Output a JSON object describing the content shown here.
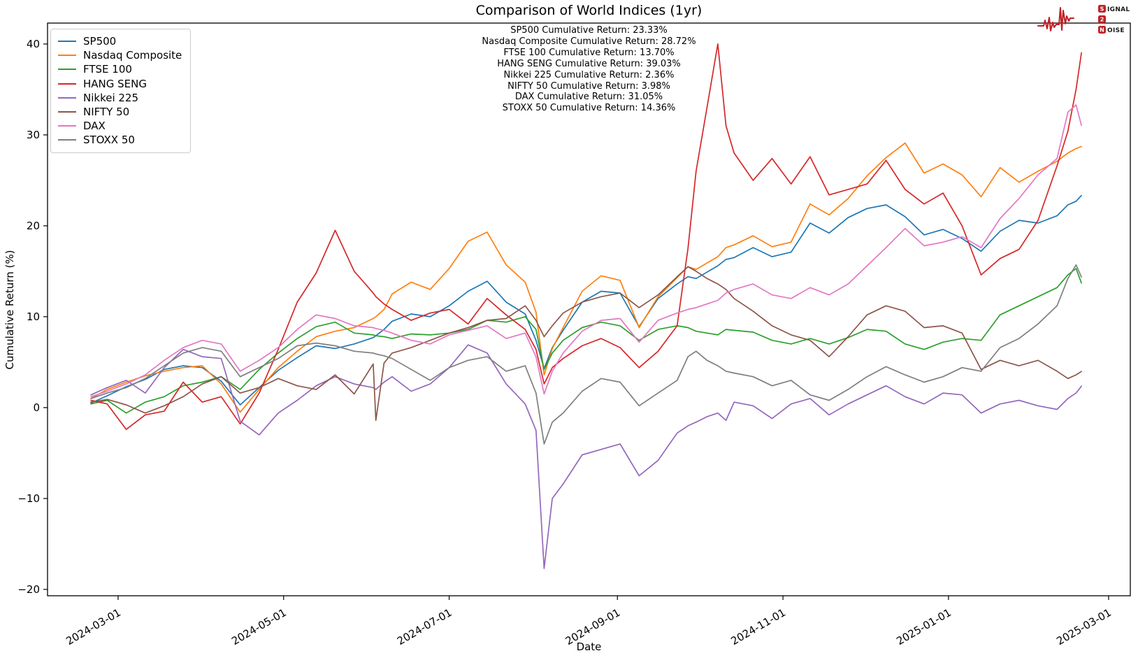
{
  "title": "Comparison of World Indices (1yr)",
  "annotations": [
    "SP500 Cumulative Return: 23.33%",
    "Nasdaq Composite Cumulative Return: 28.72%",
    "FTSE 100 Cumulative Return: 13.70%",
    "HANG SENG Cumulative Return: 39.03%",
    "Nikkei 225 Cumulative Return: 2.36%",
    "NIFTY 50 Cumulative Return: 3.98%",
    "DAX Cumulative Return: 31.05%",
    "STOXX 50 Cumulative Return: 14.36%"
  ],
  "logo": {
    "word1": "SIGNAL",
    "word2": "2",
    "word3": "NOISE",
    "accent_color": "#bf2026"
  },
  "chart_data": {
    "type": "line",
    "title": "Comparison of World Indices (1yr)",
    "xlabel": "Date",
    "ylabel": "Cumulative Return (%)",
    "grid": false,
    "legend_position": "upper left",
    "xlim": [
      "2024-02-04",
      "2025-03-09"
    ],
    "ylim": [
      -20.7,
      42.3
    ],
    "x_ticks": [
      "2024-03-01",
      "2024-05-01",
      "2024-07-01",
      "2024-09-01",
      "2024-11-01",
      "2025-01-01",
      "2025-03-01"
    ],
    "y_ticks": [
      {
        "value": -20,
        "label": "−20"
      },
      {
        "value": -10,
        "label": "−10"
      },
      {
        "value": 0,
        "label": "0"
      },
      {
        "value": 10,
        "label": "10"
      },
      {
        "value": 20,
        "label": "20"
      },
      {
        "value": 30,
        "label": "30"
      },
      {
        "value": 40,
        "label": "40"
      }
    ],
    "x": [
      "2024-02-20",
      "2024-02-26",
      "2024-03-04",
      "2024-03-11",
      "2024-03-18",
      "2024-03-25",
      "2024-04-01",
      "2024-04-08",
      "2024-04-15",
      "2024-04-22",
      "2024-04-29",
      "2024-05-06",
      "2024-05-13",
      "2024-05-20",
      "2024-05-27",
      "2024-06-03",
      "2024-06-04",
      "2024-06-07",
      "2024-06-10",
      "2024-06-17",
      "2024-06-24",
      "2024-07-01",
      "2024-07-08",
      "2024-07-15",
      "2024-07-22",
      "2024-07-29",
      "2024-08-02",
      "2024-08-05",
      "2024-08-08",
      "2024-08-12",
      "2024-08-19",
      "2024-08-26",
      "2024-09-02",
      "2024-09-09",
      "2024-09-16",
      "2024-09-23",
      "2024-09-27",
      "2024-09-30",
      "2024-10-04",
      "2024-10-08",
      "2024-10-11",
      "2024-10-14",
      "2024-10-21",
      "2024-10-28",
      "2024-11-04",
      "2024-11-11",
      "2024-11-18",
      "2024-11-25",
      "2024-12-02",
      "2024-12-09",
      "2024-12-16",
      "2024-12-23",
      "2024-12-30",
      "2025-01-06",
      "2025-01-13",
      "2025-01-20",
      "2025-01-27",
      "2025-02-03",
      "2025-02-10",
      "2025-02-14",
      "2025-02-17",
      "2025-02-19"
    ],
    "series": [
      {
        "name": "SP500",
        "color": "#1f77b4",
        "final_return_pct": 23.33,
        "values": [
          0.5,
          1.3,
          2.3,
          3.1,
          4.2,
          4.6,
          4.4,
          2.9,
          0.3,
          2.2,
          4.1,
          5.5,
          6.8,
          6.5,
          7.0,
          7.7,
          7.9,
          8.6,
          9.5,
          10.3,
          10.0,
          11.2,
          12.8,
          13.9,
          11.6,
          10.3,
          7.4,
          4.3,
          6.6,
          8.5,
          11.6,
          12.8,
          12.6,
          8.9,
          12.0,
          13.6,
          14.4,
          14.2,
          14.9,
          15.6,
          16.3,
          16.5,
          17.6,
          16.6,
          17.1,
          20.3,
          19.2,
          20.9,
          21.9,
          22.3,
          21.0,
          19.0,
          19.6,
          18.6,
          17.2,
          19.4,
          20.6,
          20.3,
          21.1,
          22.3,
          22.7,
          23.33
        ]
      },
      {
        "name": "Nasdaq Composite",
        "color": "#ff7f0e",
        "final_return_pct": 28.72,
        "values": [
          1.0,
          2.0,
          2.8,
          3.5,
          4.0,
          4.4,
          4.6,
          2.6,
          -0.5,
          2.0,
          4.4,
          6.2,
          7.8,
          8.4,
          8.8,
          9.8,
          10.0,
          10.8,
          12.5,
          13.8,
          13.0,
          15.3,
          18.3,
          19.3,
          15.7,
          13.8,
          10.5,
          3.6,
          6.5,
          8.8,
          12.8,
          14.5,
          14.0,
          8.8,
          12.2,
          14.3,
          15.5,
          15.2,
          15.9,
          16.6,
          17.6,
          17.9,
          18.9,
          17.7,
          18.2,
          22.4,
          21.2,
          23.0,
          25.5,
          27.5,
          29.1,
          25.8,
          26.8,
          25.6,
          23.2,
          26.4,
          24.8,
          26.0,
          27.1,
          28.0,
          28.5,
          28.72
        ]
      },
      {
        "name": "FTSE 100",
        "color": "#2ca02c",
        "final_return_pct": 13.7,
        "values": [
          0.4,
          0.8,
          -0.6,
          0.6,
          1.2,
          2.4,
          2.8,
          3.4,
          2.0,
          4.2,
          6.0,
          7.6,
          8.9,
          9.4,
          8.2,
          8.0,
          7.9,
          7.8,
          7.6,
          8.1,
          8.0,
          8.2,
          8.6,
          9.6,
          9.4,
          10.0,
          8.6,
          4.2,
          6.0,
          7.4,
          8.8,
          9.4,
          9.0,
          7.4,
          8.6,
          9.0,
          8.8,
          8.4,
          8.2,
          8.0,
          8.6,
          8.5,
          8.3,
          7.4,
          7.0,
          7.6,
          7.0,
          7.7,
          8.6,
          8.4,
          7.0,
          6.4,
          7.2,
          7.6,
          7.4,
          10.2,
          11.2,
          12.2,
          13.2,
          14.6,
          15.3,
          13.7
        ]
      },
      {
        "name": "HANG SENG",
        "color": "#d62728",
        "final_return_pct": 39.03,
        "values": [
          0.8,
          0.4,
          -2.4,
          -0.8,
          -0.4,
          2.8,
          0.6,
          1.2,
          -1.8,
          1.6,
          6.4,
          11.6,
          14.8,
          19.5,
          15.0,
          12.6,
          12.2,
          11.4,
          10.8,
          9.6,
          10.4,
          10.8,
          9.2,
          12.0,
          10.2,
          8.6,
          6.4,
          2.6,
          4.4,
          5.4,
          6.8,
          7.6,
          6.6,
          4.4,
          6.2,
          9.0,
          17.5,
          26.0,
          33.0,
          40.0,
          31.0,
          28.0,
          25.0,
          27.4,
          24.6,
          27.6,
          23.4,
          24.0,
          24.6,
          27.2,
          24.0,
          22.4,
          23.6,
          20.0,
          14.6,
          16.4,
          17.4,
          20.6,
          26.6,
          30.4,
          35.0,
          39.03
        ]
      },
      {
        "name": "Nikkei 225",
        "color": "#9467bd",
        "final_return_pct": 2.36,
        "values": [
          1.4,
          2.2,
          3.0,
          1.6,
          4.4,
          6.4,
          5.6,
          5.4,
          -1.5,
          -3.0,
          -0.6,
          0.8,
          2.4,
          3.4,
          2.6,
          2.2,
          2.0,
          2.8,
          3.4,
          1.8,
          2.6,
          4.4,
          6.9,
          6.0,
          2.6,
          0.4,
          -2.5,
          -17.7,
          -10.0,
          -8.4,
          -5.2,
          -4.6,
          -4.0,
          -7.5,
          -5.8,
          -2.8,
          -2.0,
          -1.6,
          -1.0,
          -0.6,
          -1.4,
          0.6,
          0.2,
          -1.2,
          0.4,
          1.0,
          -0.8,
          0.4,
          1.4,
          2.4,
          1.2,
          0.4,
          1.6,
          1.4,
          -0.6,
          0.4,
          0.8,
          0.2,
          -0.2,
          1.0,
          1.6,
          2.36
        ]
      },
      {
        "name": "NIFTY 50",
        "color": "#8c564b",
        "final_return_pct": 3.98,
        "values": [
          0.6,
          0.9,
          0.3,
          -0.6,
          0.2,
          1.2,
          2.6,
          3.4,
          1.6,
          2.2,
          3.2,
          2.4,
          2.0,
          3.6,
          1.5,
          4.8,
          -1.4,
          4.9,
          6.0,
          6.6,
          7.4,
          8.2,
          8.8,
          9.6,
          9.8,
          11.2,
          9.6,
          7.8,
          9.0,
          10.4,
          11.6,
          12.2,
          12.6,
          11.0,
          12.4,
          14.4,
          15.5,
          15.0,
          14.2,
          13.6,
          13.0,
          12.0,
          10.6,
          9.0,
          8.0,
          7.4,
          5.6,
          7.8,
          10.2,
          11.2,
          10.6,
          8.8,
          9.0,
          8.2,
          4.2,
          5.2,
          4.6,
          5.2,
          4.0,
          3.2,
          3.6,
          3.98
        ]
      },
      {
        "name": "DAX",
        "color": "#e377c2",
        "final_return_pct": 31.05,
        "values": [
          1.2,
          1.8,
          2.6,
          3.6,
          5.2,
          6.6,
          7.4,
          7.0,
          4.0,
          5.2,
          6.6,
          8.6,
          10.2,
          9.8,
          9.0,
          8.8,
          8.7,
          8.5,
          8.2,
          7.4,
          7.0,
          8.0,
          8.5,
          9.0,
          7.6,
          8.2,
          5.6,
          1.5,
          4.0,
          6.0,
          8.4,
          9.6,
          9.8,
          7.2,
          9.6,
          10.4,
          10.8,
          11.0,
          11.4,
          11.8,
          12.6,
          13.0,
          13.6,
          12.4,
          12.0,
          13.2,
          12.4,
          13.6,
          15.6,
          17.6,
          19.7,
          17.8,
          18.2,
          18.8,
          17.6,
          20.8,
          23.0,
          25.6,
          27.4,
          32.5,
          33.3,
          31.05
        ]
      },
      {
        "name": "STOXX 50",
        "color": "#7f7f7f",
        "final_return_pct": 14.36,
        "values": [
          1.0,
          1.6,
          2.2,
          3.2,
          4.6,
          6.0,
          6.6,
          6.2,
          3.4,
          4.4,
          5.4,
          6.8,
          7.1,
          6.8,
          6.2,
          6.0,
          5.9,
          5.7,
          5.4,
          4.2,
          3.0,
          4.4,
          5.2,
          5.6,
          4.0,
          4.6,
          1.6,
          -4.0,
          -1.6,
          -0.6,
          1.8,
          3.2,
          2.8,
          0.2,
          1.6,
          3.0,
          5.6,
          6.2,
          5.2,
          4.6,
          4.0,
          3.8,
          3.4,
          2.4,
          3.0,
          1.4,
          0.8,
          2.0,
          3.4,
          4.5,
          3.6,
          2.8,
          3.4,
          4.4,
          4.0,
          6.6,
          7.6,
          9.2,
          11.2,
          14.2,
          15.7,
          14.36
        ]
      }
    ]
  }
}
